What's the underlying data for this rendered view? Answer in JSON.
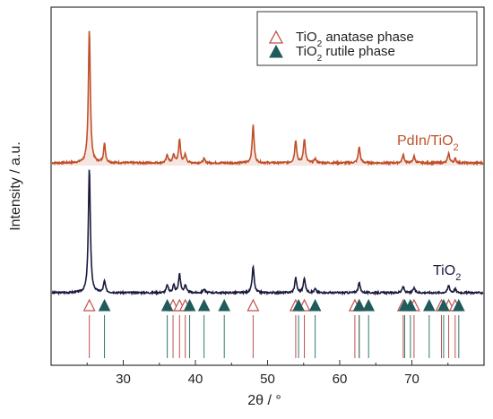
{
  "chart_data": {
    "type": "line",
    "xlabel": "2θ / °",
    "ylabel": "Intensity / a.u.",
    "xlim": [
      20,
      80
    ],
    "x_ticks": [
      30,
      40,
      50,
      60,
      70
    ],
    "x_tick_labels": [
      "30",
      "40",
      "50",
      "60",
      "70"
    ],
    "legend": {
      "placement": "top-right",
      "entries": [
        {
          "marker": "open-triangle",
          "color": "#c0504d",
          "text_main": "TiO",
          "sub": "2",
          "text_rest": " anatase phase"
        },
        {
          "marker": "filled-triangle",
          "color": "#1f5b5b",
          "text_main": "TiO",
          "sub": "2",
          "text_rest": " rutile  phase"
        }
      ]
    },
    "series": [
      {
        "name_main": "PdIn/TiO",
        "name_sub": "2",
        "color": "#c0502a",
        "peaks": [
          {
            "x": 25.3,
            "h": 100
          },
          {
            "x": 27.4,
            "h": 14
          },
          {
            "x": 36.1,
            "h": 6
          },
          {
            "x": 37.0,
            "h": 6
          },
          {
            "x": 37.8,
            "h": 17
          },
          {
            "x": 38.6,
            "h": 6
          },
          {
            "x": 41.2,
            "h": 3
          },
          {
            "x": 48.0,
            "h": 28
          },
          {
            "x": 53.9,
            "h": 17
          },
          {
            "x": 55.1,
            "h": 18
          },
          {
            "x": 56.6,
            "h": 3
          },
          {
            "x": 62.7,
            "h": 12
          },
          {
            "x": 68.8,
            "h": 6
          },
          {
            "x": 70.3,
            "h": 5
          },
          {
            "x": 75.1,
            "h": 7
          },
          {
            "x": 76.0,
            "h": 3
          }
        ]
      },
      {
        "name_main": "TiO",
        "name_sub": "2",
        "color": "#1a1a40",
        "peaks": [
          {
            "x": 25.3,
            "h": 100
          },
          {
            "x": 27.4,
            "h": 9
          },
          {
            "x": 36.1,
            "h": 6
          },
          {
            "x": 37.0,
            "h": 6
          },
          {
            "x": 37.8,
            "h": 15
          },
          {
            "x": 38.6,
            "h": 6
          },
          {
            "x": 41.2,
            "h": 3
          },
          {
            "x": 48.0,
            "h": 21
          },
          {
            "x": 53.9,
            "h": 12
          },
          {
            "x": 55.1,
            "h": 12
          },
          {
            "x": 56.6,
            "h": 3
          },
          {
            "x": 62.7,
            "h": 8
          },
          {
            "x": 68.8,
            "h": 5
          },
          {
            "x": 70.3,
            "h": 4
          },
          {
            "x": 75.1,
            "h": 6
          },
          {
            "x": 76.0,
            "h": 3
          }
        ]
      }
    ],
    "anatase_refs": [
      25.3,
      36.9,
      37.8,
      38.6,
      48.0,
      53.9,
      55.1,
      62.1,
      62.7,
      68.8,
      70.3,
      74.1,
      75.1,
      76.0
    ],
    "rutile_refs": [
      27.4,
      36.1,
      39.2,
      41.2,
      44.0,
      54.3,
      56.6,
      62.7,
      64.0,
      69.0,
      69.8,
      72.4,
      74.4,
      76.5
    ]
  }
}
